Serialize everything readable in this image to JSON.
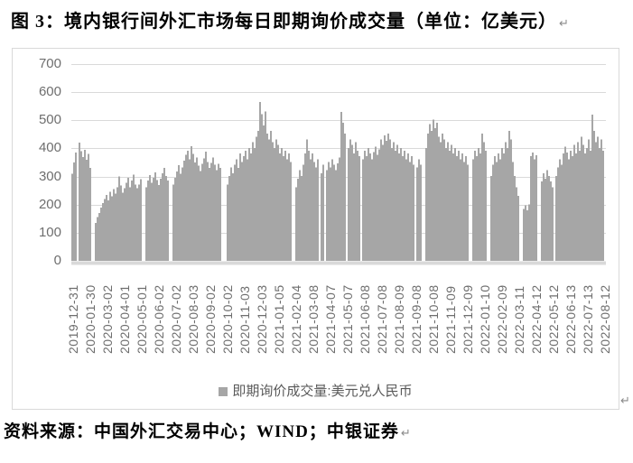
{
  "document": {
    "title": "图 3：境内银行间外汇市场每日即期询价成交量（单位：亿美元）",
    "source_line": "资料来源：中国外汇交易中心；WIND；中银证券",
    "return_mark": "↵"
  },
  "chart_data": {
    "type": "bar",
    "title": "境内银行间外汇市场每日即期询价成交量",
    "unit": "亿美元",
    "legend_position": "bottom",
    "grid": true,
    "ylim": [
      0,
      700
    ],
    "y_ticks": [
      0,
      100,
      200,
      300,
      400,
      500,
      600,
      700
    ],
    "x_range": [
      "2019-12-31",
      "2022-08-12"
    ],
    "x_tick_labels": [
      "2019-12-31",
      "2020-01-30",
      "2020-03-02",
      "2020-04-01",
      "2020-05-01",
      "2020-06-02",
      "2020-07-02",
      "2020-08-03",
      "2020-09-02",
      "2020-10-02",
      "2020-11-03",
      "2020-12-03",
      "2021-01-05",
      "2021-02-04",
      "2021-03-08",
      "2021-04-07",
      "2021-05-07",
      "2021-06-08",
      "2021-07-08",
      "2021-08-09",
      "2021-09-08",
      "2021-10-08",
      "2021-11-09",
      "2021-12-09",
      "2022-01-10",
      "2022-02-09",
      "2022-03-11",
      "2022-04-12",
      "2022-05-12",
      "2022-06-13",
      "2022-07-13",
      "2022-08-12"
    ],
    "series": [
      {
        "name": "即期询价成交量:美元兑人民币",
        "values": [
          310,
          350,
          385,
          0,
          420,
          390,
          370,
          395,
          360,
          380,
          330,
          0,
          0,
          135,
          155,
          170,
          190,
          205,
          220,
          235,
          215,
          245,
          230,
          255,
          240,
          262,
          300,
          268,
          242,
          258,
          278,
          296,
          262,
          286,
          306,
          272,
          258,
          272,
          290,
          0,
          0,
          262,
          285,
          305,
          278,
          295,
          315,
          288,
          270,
          292,
          312,
          330,
          302,
          285,
          0,
          0,
          272,
          295,
          318,
          340,
          310,
          332,
          356,
          378,
          392,
          362,
          408,
          380,
          350,
          368,
          338,
          320,
          345,
          365,
          388,
          352,
          330,
          348,
          368,
          342,
          322,
          345,
          330,
          0,
          0,
          0,
          272,
          302,
          332,
          312,
          342,
          362,
          330,
          382,
          352,
          372,
          392,
          362,
          402,
          382,
          422,
          402,
          442,
          462,
          565,
          522,
          482,
          532,
          452,
          432,
          462,
          422,
          402,
          432,
          412,
          382,
          402,
          372,
          392,
          362,
          382,
          352,
          0,
          0,
          262,
          292,
          322,
          302,
          342,
          382,
          432,
          392,
          362,
          382,
          352,
          332,
          362,
          0,
          312,
          342,
          0,
          322,
          352,
          332,
          362,
          342,
          322,
          347,
          367,
          530,
          492,
          452,
          0,
          402,
          432,
          412,
          382,
          422,
          392,
          372,
          0,
          362,
          392,
          372,
          402,
          382,
          362,
          387,
          407,
          377,
          397,
          432,
          412,
          447,
          427,
          452,
          432,
          402,
          422,
          392,
          412,
          382,
          402,
          372,
          392,
          362,
          382,
          352,
          372,
          342,
          0,
          332,
          362,
          342,
          0,
          0,
          402,
          452,
          487,
          462,
          502,
          472,
          492,
          442,
          422,
          452,
          432,
          402,
          422,
          392,
          412,
          382,
          402,
          372,
          392,
          362,
          382,
          352,
          372,
          342,
          0,
          0,
          362,
          392,
          372,
          402,
          382,
          452,
          422,
          392,
          0,
          0,
          302,
          342,
          372,
          352,
          382,
          362,
          402,
          382,
          422,
          402,
          462,
          432,
          352,
          302,
          262,
          232,
          0,
          0,
          185,
          198,
          180,
          200,
          372,
          386,
          362,
          376,
          0,
          0,
          282,
          312,
          292,
          322,
          302,
          282,
          262,
          0,
          302,
          332,
          362,
          342,
          382,
          406,
          386,
          362,
          392,
          372,
          412,
          382,
          422,
          392,
          442,
          412,
          382,
          402,
          432,
          392,
          520,
          462,
          422,
          442,
          402,
          432,
          392
        ]
      }
    ]
  },
  "style": {
    "bar_color": "#a6a6a6",
    "grid_color": "#d9d9d9",
    "axis_strip_color": "#d9d9d9",
    "tick_label_color": "#6e6e6e",
    "legend_text_color": "#595959",
    "frame_border_color": "#d9d9d9"
  }
}
